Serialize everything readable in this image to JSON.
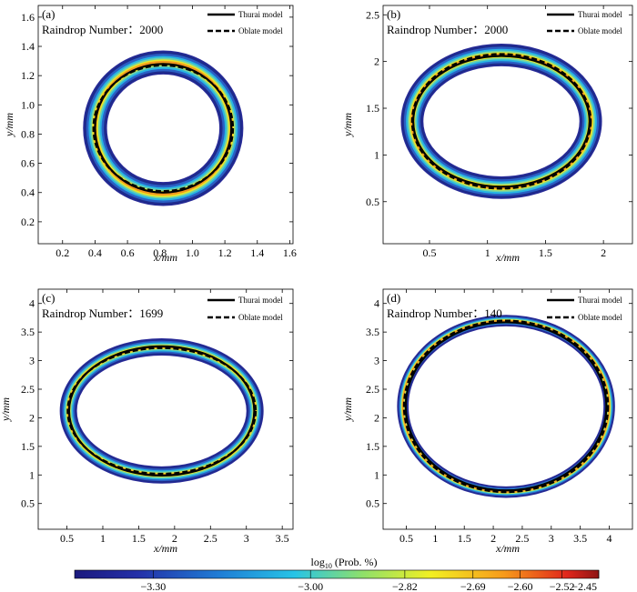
{
  "chart_data": [
    {
      "type": "contour",
      "panel_label": "(a)",
      "annotation": "Raindrop Number：2000",
      "xlabel": "x/mm",
      "ylabel": "y/mm",
      "xlim": [
        0.05,
        1.62
      ],
      "ylim": [
        0.05,
        1.68
      ],
      "xticks": [
        0.2,
        0.4,
        0.6,
        0.8,
        1.0,
        1.2,
        1.4,
        1.6
      ],
      "xtick_labels": [
        "0.2",
        "0.4",
        "0.6",
        "0.8",
        "1.0",
        "1.2",
        "1.4",
        "1.6"
      ],
      "yticks": [
        0.2,
        0.4,
        0.6,
        0.8,
        1.0,
        1.2,
        1.4,
        1.6
      ],
      "ytick_labels": [
        "0.2",
        "0.4",
        "0.6",
        "0.8",
        "1.0",
        "1.2",
        "1.4",
        "1.6"
      ],
      "legend": [
        "Thurai model",
        "Oblate model"
      ],
      "legend_position": "top-right",
      "ring": {
        "center": [
          0.82,
          0.84
        ],
        "rx": 0.42,
        "ry": 0.45,
        "halfwidth": 0.065
      },
      "thurai_model": {
        "center": [
          0.82,
          0.84
        ],
        "rx": 0.42,
        "ry": 0.44
      },
      "oblate_model": {
        "center": [
          0.82,
          0.84
        ],
        "rx": 0.43,
        "ry": 0.43
      }
    },
    {
      "type": "contour",
      "panel_label": "(b)",
      "annotation": "Raindrop Number：2000",
      "xlabel": "x/mm",
      "ylabel": "y/mm",
      "xlim": [
        0.1,
        2.25
      ],
      "ylim": [
        0.05,
        2.6
      ],
      "xticks": [
        0.5,
        1.0,
        1.5,
        2.0
      ],
      "xtick_labels": [
        "0.5",
        "1",
        "1.5",
        "2"
      ],
      "yticks": [
        0.5,
        1.0,
        1.5,
        2.0,
        2.5
      ],
      "ytick_labels": [
        "0.5",
        "1",
        "1.5",
        "2",
        "2.5"
      ],
      "legend": [
        "Thurai model",
        "Oblate model"
      ],
      "legend_position": "top-right",
      "ring": {
        "center": [
          1.12,
          1.36
        ],
        "rx": 0.77,
        "ry": 0.71,
        "halfwidth": 0.09
      },
      "thurai_model": {
        "center": [
          1.12,
          1.36
        ],
        "rx": 0.76,
        "ry": 0.7
      },
      "oblate_model": {
        "center": [
          1.12,
          1.36
        ],
        "rx": 0.77,
        "ry": 0.72
      }
    },
    {
      "type": "contour",
      "panel_label": "(c)",
      "annotation": "Raindrop Number：1699",
      "xlabel": "x/mm",
      "ylabel": "y/mm",
      "xlim": [
        0.1,
        3.65
      ],
      "ylim": [
        0.05,
        4.25
      ],
      "xticks": [
        0.5,
        1.0,
        1.5,
        2.0,
        2.5,
        3.0,
        3.5
      ],
      "xtick_labels": [
        "0.5",
        "1",
        "1.5",
        "2",
        "2.5",
        "3",
        "3.5"
      ],
      "yticks": [
        0.5,
        1.0,
        1.5,
        2.0,
        2.5,
        3.0,
        3.5,
        4.0
      ],
      "ytick_labels": [
        "0.5",
        "1",
        "1.5",
        "2",
        "2.5",
        "3",
        "3.5",
        "4"
      ],
      "legend": [
        "Thurai model",
        "Oblate model"
      ],
      "legend_position": "top-right",
      "ring": {
        "center": [
          1.82,
          2.12
        ],
        "rx": 1.3,
        "ry": 1.12,
        "halfwidth": 0.11
      },
      "thurai_model": {
        "center": [
          1.82,
          2.12
        ],
        "rx": 1.29,
        "ry": 1.13
      },
      "oblate_model": {
        "center": [
          1.82,
          2.12
        ],
        "rx": 1.31,
        "ry": 1.1
      }
    },
    {
      "type": "contour",
      "panel_label": "(d)",
      "annotation": "Raindrop Number：140",
      "xlabel": "x/mm",
      "ylabel": "y/mm",
      "xlim": [
        0.1,
        4.4
      ],
      "ylim": [
        0.05,
        4.25
      ],
      "xticks": [
        0.5,
        1.0,
        1.5,
        2.0,
        2.5,
        3.0,
        3.5,
        4.0
      ],
      "xtick_labels": [
        "0.5",
        "1",
        "1.5",
        "2",
        "2.5",
        "3",
        "3.5",
        "4"
      ],
      "yticks": [
        0.5,
        1.0,
        1.5,
        2.0,
        2.5,
        3.0,
        3.5,
        4.0
      ],
      "ytick_labels": [
        "0.5",
        "1",
        "1.5",
        "2",
        "2.5",
        "3",
        "3.5",
        "4"
      ],
      "legend": [
        "Thurai model",
        "Oblate model"
      ],
      "legend_position": "top-right",
      "ring": {
        "center": [
          2.22,
          2.2
        ],
        "rx": 1.78,
        "ry": 1.5,
        "halfwidth": 0.08
      },
      "thurai_model": {
        "center": [
          2.22,
          2.2
        ],
        "rx": 1.73,
        "ry": 1.47
      },
      "oblate_model": {
        "center": [
          2.22,
          2.2
        ],
        "rx": 1.76,
        "ry": 1.5
      }
    }
  ],
  "colorbar": {
    "title_prefix": "log",
    "title_subscript": "10",
    "title_suffix": " (Prob. %)",
    "range": [
      -3.45,
      -2.45
    ],
    "tick_values": [
      -3.3,
      -3.0,
      -2.82,
      -2.69,
      -2.6,
      -2.52,
      -2.45
    ],
    "tick_labels": [
      "−3.30",
      "−3.00",
      "−2.82",
      "−2.69",
      "−2.60",
      "−2.52",
      "−2.45"
    ],
    "colormap": "jet"
  },
  "colors": {
    "outline": "#2a2b9a",
    "deep_blue": "#1f2a8c",
    "model_line": "#000000"
  }
}
